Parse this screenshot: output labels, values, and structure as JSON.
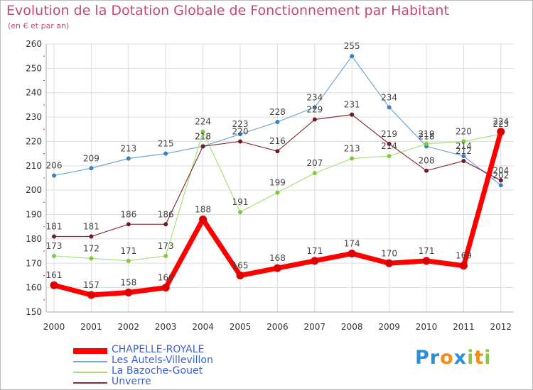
{
  "title": "Evolution de la Dotation Globale de Fonctionnement par Habitant",
  "subtitle": "(en € et par an)",
  "logo": {
    "text": "Proxiti",
    "parts": [
      "Pr",
      "o",
      "x",
      "i",
      "t",
      "i"
    ]
  },
  "colors": {
    "text_pink": "#c8457b",
    "grid": "#dddddd",
    "axis": "#aaaaaa",
    "tick_text": "#333333",
    "label_text": "#444444"
  },
  "chart_data": {
    "type": "line",
    "title": "Evolution de la Dotation Globale de Fonctionnement par Habitant",
    "subtitle": "(en € et par an)",
    "xlabel": "",
    "ylabel": "",
    "x": [
      "2000",
      "2001",
      "2002",
      "2003",
      "2004",
      "2005",
      "2006",
      "2007",
      "2008",
      "2009",
      "2010",
      "2011",
      "2012"
    ],
    "ylim": [
      150,
      260
    ],
    "yticks": [
      150,
      160,
      170,
      180,
      190,
      200,
      210,
      220,
      230,
      240,
      250,
      260
    ],
    "grid": true,
    "legend_position": "bottom-left",
    "series": [
      {
        "name": "CHAPELLE-ROYALE",
        "color": "#ff0000",
        "marker": "#dd0000",
        "width": 7,
        "values": [
          161,
          157,
          158,
          160,
          188,
          165,
          168,
          171,
          174,
          170,
          171,
          169,
          224
        ],
        "labels": [
          "161",
          "157",
          "158",
          "160",
          "188",
          "165",
          "168",
          "171",
          "174",
          "170",
          "171",
          "169",
          "224"
        ]
      },
      {
        "name": "Les Autels-Villevillon",
        "color": "#6fa8d6",
        "marker": "#3a7fc0",
        "width": 1.2,
        "values": [
          206,
          209,
          213,
          215,
          218,
          223,
          228,
          234,
          255,
          234,
          218,
          214,
          202
        ],
        "labels": [
          "206",
          "209",
          "213",
          "215",
          "218",
          "223",
          "228",
          "234",
          "255",
          "234",
          "218",
          "214",
          "202"
        ]
      },
      {
        "name": "La Bazoche-Gouet",
        "color": "#a8e07a",
        "marker": "#7ccc3c",
        "width": 1.2,
        "values": [
          173,
          172,
          171,
          173,
          224,
          191,
          199,
          207,
          213,
          214,
          219,
          220,
          223
        ],
        "labels": [
          "173",
          "172",
          "171",
          "173",
          "224",
          "191",
          "199",
          "207",
          "213",
          "214",
          "219",
          "220",
          "223"
        ]
      },
      {
        "name": "Unverre",
        "color": "#8a2f3a",
        "marker": "#6a1f28",
        "width": 1.2,
        "values": [
          181,
          181,
          186,
          186,
          218,
          220,
          216,
          229,
          231,
          219,
          208,
          212,
          204
        ],
        "labels": [
          "181",
          "181",
          "186",
          "186",
          "218",
          "220",
          "216",
          "229",
          "231",
          "219",
          "208",
          "212",
          "204"
        ]
      }
    ]
  }
}
